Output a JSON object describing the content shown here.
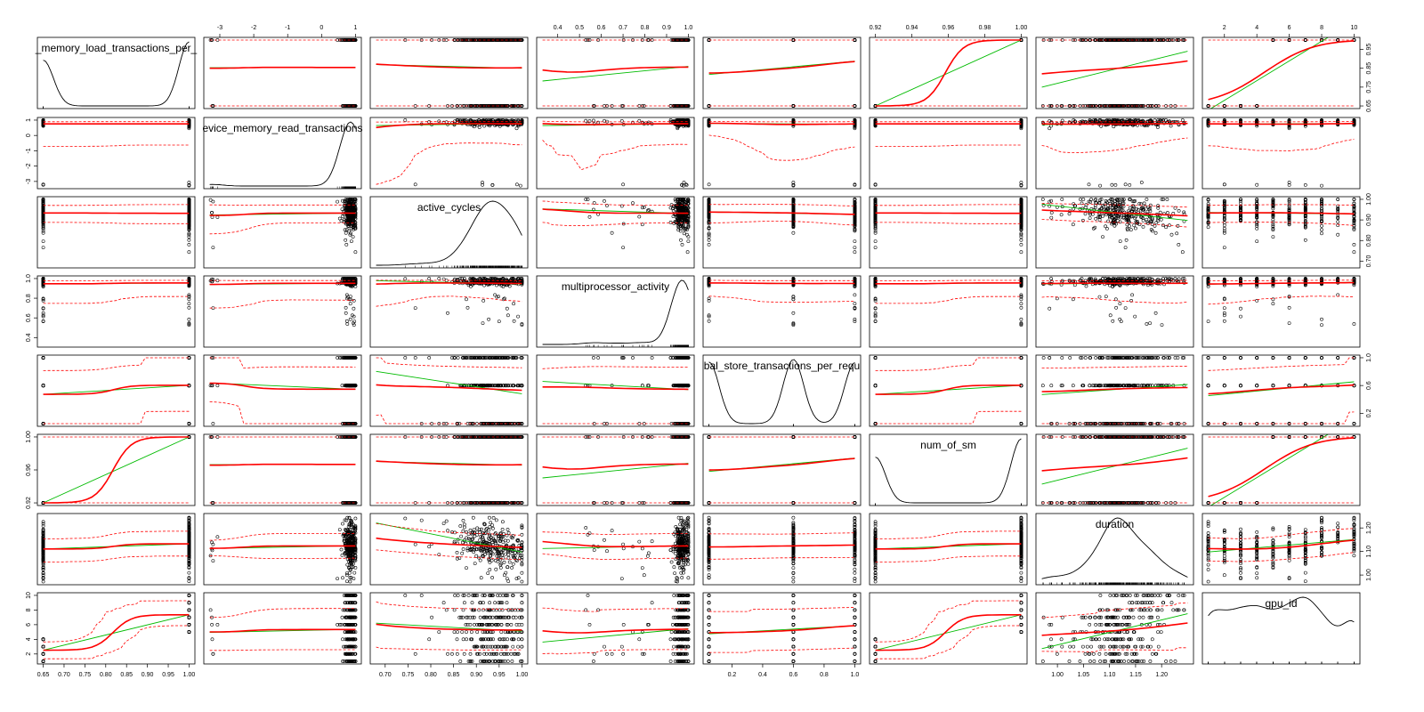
{
  "chart_data": {
    "type": "scatter",
    "variables": [
      "global_memory_load_transactions_per_",
      "device_memory_read_transactions",
      "active_cycles",
      "multiprocessor_activity",
      "global_store_transactions_per_request",
      "num_of_sm",
      "duration",
      "gpu_id"
    ],
    "display_names": [
      "_memory_load_transactions_per_",
      "evice_memory_read_transactions",
      "active_cycles",
      "multiprocessor_activity",
      "bal_store_transactions_per_requ",
      "num_of_sm",
      "duration",
      "gpu_id"
    ],
    "ranges": [
      [
        0.65,
        1.0
      ],
      [
        -3.3,
        1.0
      ],
      [
        0.68,
        1.0
      ],
      [
        0.33,
        1.0
      ],
      [
        0.05,
        1.0
      ],
      [
        0.92,
        1.0
      ],
      [
        0.97,
        1.25
      ],
      [
        1,
        10
      ]
    ],
    "tick_values": [
      [
        "0.65",
        "0.70",
        "0.75",
        "0.80",
        "0.85",
        "0.90",
        "0.95",
        "1.00"
      ],
      [
        "-3",
        "-2",
        "-1",
        "0",
        "1"
      ],
      [
        "0.70",
        "0.75",
        "0.80",
        "0.85",
        "0.90",
        "0.95",
        "1.00"
      ],
      [
        "0.4",
        "0.5",
        "0.6",
        "0.7",
        "0.8",
        "0.9",
        "1.0"
      ],
      [
        "0.2",
        "0.4",
        "0.6",
        "0.8",
        "1.0"
      ],
      [
        "0.92",
        "0.94",
        "0.96",
        "0.98",
        "1.00"
      ],
      [
        "1.00",
        "1.05",
        "1.10",
        "1.15",
        "1.20"
      ],
      [
        "2",
        "4",
        "6",
        "8",
        "10"
      ]
    ],
    "side_tick_values": [
      [
        "0.65",
        "0.75",
        "0.85",
        "0.95"
      ],
      [
        "-3",
        "-2",
        "-1",
        "0",
        "1"
      ],
      [
        "0.70",
        "0.80",
        "0.90",
        "1.00"
      ],
      [
        "0.4",
        "0.6",
        "0.8",
        "1.0"
      ],
      [
        "0.2",
        "0.6",
        "1.0"
      ],
      [
        "0.92",
        "0.96",
        "1.00"
      ],
      [
        "1.00",
        "1.10",
        "1.20"
      ],
      [
        "2",
        "4",
        "6",
        "8",
        "10"
      ]
    ],
    "top_axis_columns": [
      1,
      3,
      5,
      7
    ],
    "bottom_axis_columns": [
      0,
      2,
      4,
      6
    ],
    "left_axis_rows": [
      1,
      3,
      5,
      7
    ],
    "right_axis_rows": [
      0,
      2,
      4,
      6
    ],
    "diagonal": "density",
    "smoother": "loess with dashed spread bands",
    "fit_line": "linear regression",
    "colors": {
      "points": "#000000",
      "loess": "#ff0000",
      "spread": "#ff0000",
      "linear": "#00bb00",
      "density": "#000000",
      "frame": "#000000"
    }
  }
}
